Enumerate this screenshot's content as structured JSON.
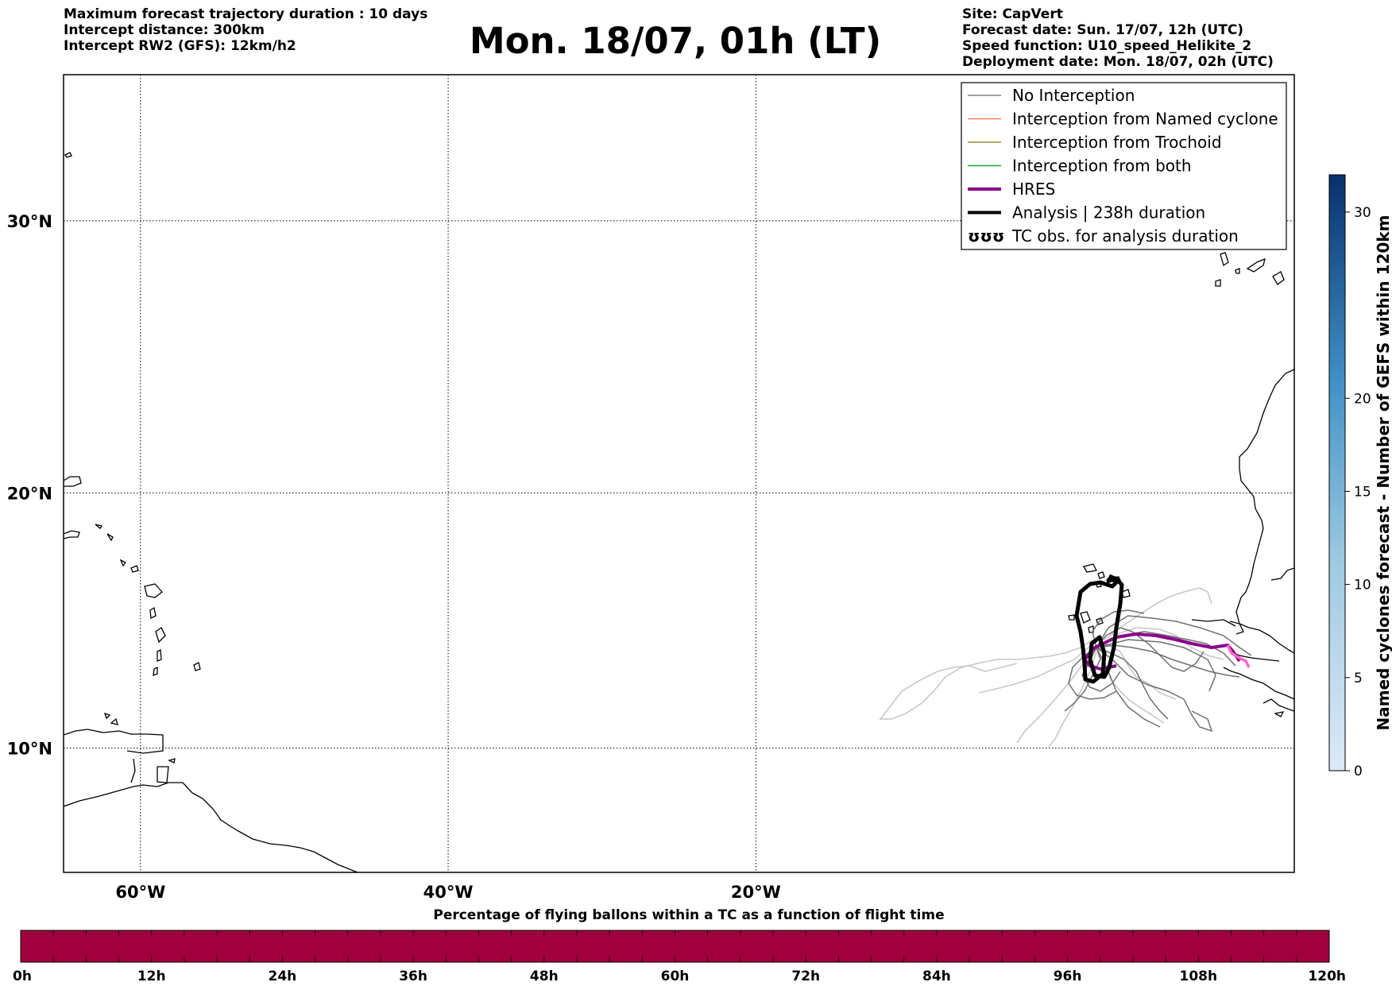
{
  "header_left": {
    "line1": "Maximum forecast trajectory duration : 10 days",
    "line2": "Intercept distance: 300km",
    "line3": "Intercept RW2 (GFS):  12km/h2"
  },
  "title": "Mon. 18/07, 01h (LT)",
  "header_right": {
    "line1": "Site: CapVert",
    "line2": "Forecast date: Sun. 17/07, 12h (UTC)",
    "line3": "Speed function: U10_speed_Helikite_2",
    "line4": "Deployment date: Mon. 18/07, 02h (UTC)"
  },
  "map": {
    "lon_range": [
      -65,
      15
    ],
    "lat_range": [
      5,
      35
    ],
    "lon_ticks": [
      {
        "value": -60,
        "label": "60°W"
      },
      {
        "value": -40,
        "label": "40°W"
      },
      {
        "value": -20,
        "label": "20°W"
      }
    ],
    "lat_ticks": [
      {
        "value": 30,
        "label": "30°N"
      },
      {
        "value": 20,
        "label": "20°N"
      },
      {
        "value": 10,
        "label": "10°N"
      }
    ],
    "gridlines": true
  },
  "legend": {
    "position": "top-right",
    "items": [
      {
        "label": "No Interception",
        "color": "#808080",
        "style": "thin"
      },
      {
        "label": "Interception from Named cyclone",
        "color": "#ff7f50",
        "style": "thin"
      },
      {
        "label": "Interception from Trochoid",
        "color": "#9a8a3a",
        "style": "thin"
      },
      {
        "label": "Interception from both",
        "color": "#2ca02c",
        "style": "thin"
      },
      {
        "label": "HRES",
        "color": "#8b008b",
        "style": "thick"
      },
      {
        "label": "Analysis | 238h duration",
        "color": "#000000",
        "style": "thick"
      },
      {
        "label": "TC obs. for analysis duration",
        "color": "#000000",
        "style": "symbol",
        "symbol": "ʊʊʊ"
      }
    ]
  },
  "colorbar_right": {
    "title": "Named cyclones forecast - Number of GEFS within 120km",
    "range": [
      0,
      32
    ],
    "ticks": [
      0,
      5,
      10,
      15,
      20,
      30
    ],
    "color_low": "#dde9f7",
    "color_high": "#08306b"
  },
  "colorbar_bottom": {
    "title": "Percentage of flying ballons within a TC as a function of flight time",
    "ticks": [
      "0h",
      "12h",
      "24h",
      "36h",
      "48h",
      "60h",
      "72h",
      "84h",
      "96h",
      "108h",
      "120h"
    ],
    "color": "#a0003c"
  }
}
